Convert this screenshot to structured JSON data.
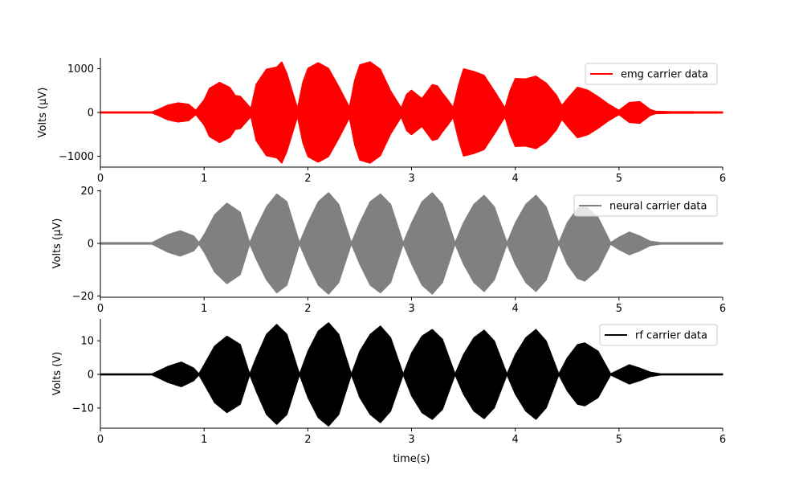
{
  "chart_data": [
    {
      "type": "line",
      "title": "",
      "xlabel": "",
      "ylabel": "Volts (μV)",
      "xlim": [
        0,
        6
      ],
      "ylim": [
        -1250,
        1250
      ],
      "xticks": [
        0,
        1,
        2,
        3,
        4,
        5,
        6
      ],
      "yticks": [
        -1000,
        0,
        1000
      ],
      "legend": {
        "placement": "upper-right"
      },
      "grid": false,
      "series": [
        {
          "name": "emg carrier data",
          "color": "#ff0000",
          "envelope": {
            "x": [
              0,
              0.5,
              0.55,
              0.65,
              0.75,
              0.85,
              0.92,
              1.0,
              1.05,
              1.15,
              1.25,
              1.3,
              1.35,
              1.45,
              1.5,
              1.6,
              1.7,
              1.75,
              1.8,
              1.9,
              1.95,
              2.0,
              2.1,
              2.2,
              2.3,
              2.4,
              2.45,
              2.5,
              2.6,
              2.7,
              2.8,
              2.9,
              2.95,
              3.0,
              3.1,
              3.2,
              3.25,
              3.3,
              3.35,
              3.4,
              3.45,
              3.5,
              3.6,
              3.7,
              3.8,
              3.9,
              3.95,
              4.0,
              4.1,
              4.2,
              4.3,
              4.4,
              4.45,
              4.5,
              4.6,
              4.7,
              4.8,
              4.9,
              5.0,
              5.1,
              5.2,
              5.3,
              5.35,
              5.5,
              6.0
            ],
            "amplitude": [
              25,
              25,
              70,
              180,
              230,
              200,
              60,
              300,
              560,
              700,
              580,
              400,
              380,
              110,
              650,
              1000,
              1050,
              1170,
              900,
              120,
              700,
              1020,
              1150,
              1020,
              600,
              140,
              750,
              1100,
              1170,
              1000,
              500,
              120,
              420,
              520,
              330,
              650,
              620,
              450,
              300,
              130,
              620,
              1010,
              950,
              860,
              500,
              120,
              520,
              790,
              780,
              840,
              680,
              400,
              170,
              320,
              590,
              520,
              370,
              200,
              60,
              240,
              260,
              80,
              40,
              30,
              25
            ]
          }
        }
      ]
    },
    {
      "type": "line",
      "title": "",
      "xlabel": "",
      "ylabel": "Volts (μV)",
      "xlim": [
        0,
        6
      ],
      "ylim": [
        -20.5,
        20.5
      ],
      "xticks": [
        0,
        1,
        2,
        3,
        4,
        5,
        6
      ],
      "yticks": [
        -20,
        0,
        20
      ],
      "legend": {
        "placement": "upper-right"
      },
      "grid": false,
      "series": [
        {
          "name": "neural carrier data",
          "color": "#808080",
          "envelope": {
            "x": [
              0,
              0.5,
              0.55,
              0.65,
              0.77,
              0.9,
              0.95,
              1.0,
              1.1,
              1.22,
              1.35,
              1.44,
              1.5,
              1.6,
              1.7,
              1.8,
              1.92,
              2.0,
              2.1,
              2.2,
              2.3,
              2.42,
              2.5,
              2.6,
              2.7,
              2.8,
              2.92,
              3.0,
              3.1,
              3.2,
              3.3,
              3.42,
              3.5,
              3.6,
              3.7,
              3.8,
              3.92,
              4.0,
              4.1,
              4.2,
              4.3,
              4.42,
              4.5,
              4.6,
              4.67,
              4.8,
              4.92,
              5.0,
              5.1,
              5.2,
              5.3,
              5.4,
              6.0
            ],
            "amplitude": [
              0.5,
              0.5,
              1.5,
              3.5,
              5,
              3,
              0.5,
              3.5,
              11,
              15.5,
              12,
              0.5,
              6,
              14,
              19,
              16,
              0.5,
              8,
              16,
              19.5,
              15,
              0.5,
              8,
              16,
              19,
              15,
              0.5,
              8,
              16,
              19.5,
              15,
              0.5,
              8,
              15,
              18.5,
              14,
              0.5,
              8,
              15,
              18.5,
              14,
              0.5,
              8,
              13.5,
              14.5,
              10,
              0.5,
              2.5,
              4.5,
              3,
              1,
              0.5,
              0.5
            ]
          }
        }
      ]
    },
    {
      "type": "line",
      "title": "",
      "xlabel": "time(s)",
      "ylabel": "Volts (V)",
      "xlim": [
        0,
        6
      ],
      "ylim": [
        -16,
        16.5
      ],
      "xticks": [
        0,
        1,
        2,
        3,
        4,
        5,
        6
      ],
      "yticks": [
        -10,
        0,
        10
      ],
      "legend": {
        "placement": "upper-right"
      },
      "grid": false,
      "series": [
        {
          "name": "rf carrier data",
          "color": "#000000",
          "envelope": {
            "x": [
              0,
              0.5,
              0.55,
              0.65,
              0.78,
              0.9,
              0.95,
              1.0,
              1.1,
              1.22,
              1.35,
              1.44,
              1.5,
              1.6,
              1.7,
              1.8,
              1.92,
              2.0,
              2.1,
              2.2,
              2.3,
              2.42,
              2.5,
              2.6,
              2.7,
              2.8,
              2.92,
              3.0,
              3.1,
              3.2,
              3.3,
              3.42,
              3.5,
              3.6,
              3.7,
              3.8,
              3.92,
              4.0,
              4.1,
              4.2,
              4.3,
              4.42,
              4.5,
              4.6,
              4.67,
              4.8,
              4.92,
              5.0,
              5.1,
              5.2,
              5.3,
              5.4,
              6.0
            ],
            "amplitude": [
              0.3,
              0.3,
              1,
              2.5,
              3.8,
              2,
              0.3,
              3,
              8.5,
              11.5,
              9,
              0.3,
              5,
              12,
              15,
              12,
              0.3,
              7,
              13,
              15.5,
              12,
              0.3,
              7,
              12,
              14.5,
              11,
              0.3,
              6.5,
              11.5,
              13.5,
              10.5,
              0.3,
              6,
              11,
              13.3,
              10,
              0.3,
              6,
              11,
              13.5,
              10,
              0.3,
              5,
              9,
              9.5,
              7,
              0.3,
              1.5,
              3,
              2,
              0.8,
              0.3,
              0.3
            ]
          }
        }
      ]
    }
  ]
}
